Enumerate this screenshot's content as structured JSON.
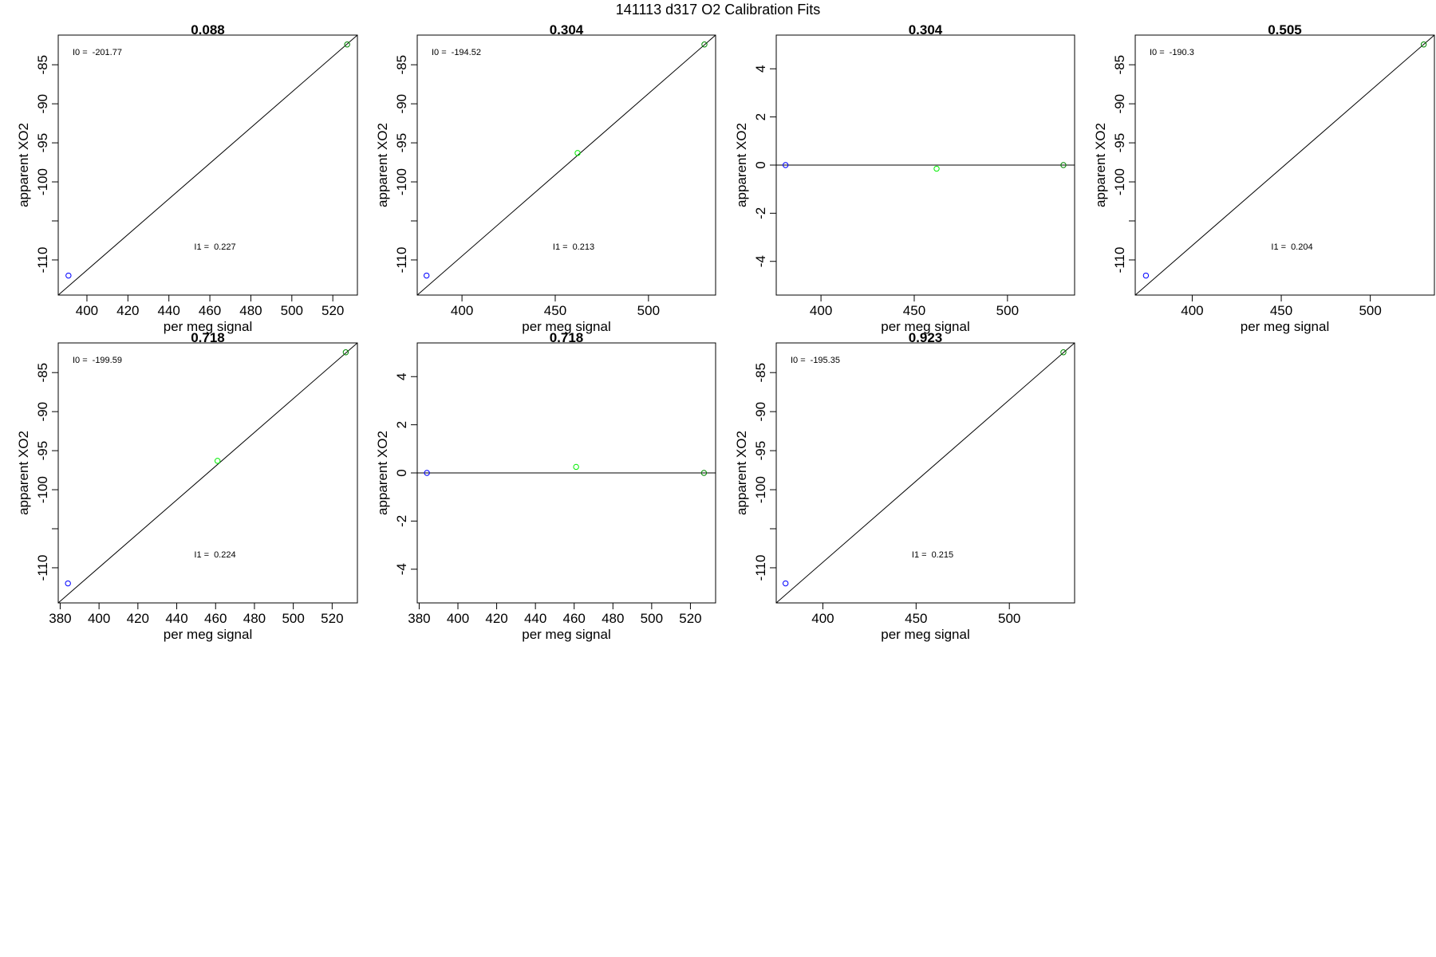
{
  "figure_title": "141113   d317   O2 Calibration Fits",
  "colors": {
    "low": "#0000ff",
    "mid": "#00ee00",
    "high": "#008800",
    "line": "#000000"
  },
  "chart_data": [
    {
      "type": "scatter",
      "title": "0.088",
      "xlabel": "per meg signal",
      "ylabel": "apparent XO2",
      "xlim": [
        386,
        532
      ],
      "ylim": [
        -114.5,
        -81.2
      ],
      "xticks": [
        "400",
        "420",
        "440",
        "460",
        "480",
        "500",
        "520"
      ],
      "yticks": [
        "-110",
        "-100",
        "-95",
        "-90",
        "-85"
      ],
      "ytick_extra": [
        "-105"
      ],
      "points": [
        {
          "x": 391.0,
          "y": -112.0,
          "color": "low"
        },
        {
          "x": 527.0,
          "y": -82.4,
          "color": "high"
        }
      ],
      "fit_line": "diagonal",
      "i0_label": "I0 =",
      "i0_value": "-201.77",
      "i1_label": "I1 =",
      "i1_value": "0.227"
    },
    {
      "type": "scatter",
      "title": "0.304",
      "xlabel": "per meg signal",
      "ylabel": "apparent XO2",
      "xlim": [
        376,
        536
      ],
      "ylim": [
        -114.5,
        -81.2
      ],
      "xticks": [
        "400",
        "450",
        "500"
      ],
      "yticks": [
        "-110",
        "-100",
        "-95",
        "-90",
        "-85"
      ],
      "ytick_extra": [
        "-105"
      ],
      "points": [
        {
          "x": 381.0,
          "y": -112.0,
          "color": "low"
        },
        {
          "x": 462.0,
          "y": -96.3,
          "color": "mid"
        },
        {
          "x": 530.0,
          "y": -82.4,
          "color": "high"
        }
      ],
      "fit_line": "diagonal",
      "i0_label": "I0 =",
      "i0_value": "-194.52",
      "i1_label": "I1 =",
      "i1_value": "0.213"
    },
    {
      "type": "scatter",
      "title": "0.304",
      "xlabel": "per meg signal",
      "ylabel": "apparent XO2",
      "xlim": [
        376,
        536
      ],
      "ylim": [
        -5.4,
        5.4
      ],
      "xticks": [
        "400",
        "450",
        "500"
      ],
      "yticks": [
        "-4",
        "-2",
        "0",
        "2",
        "4"
      ],
      "points": [
        {
          "x": 381.0,
          "y": 0.0,
          "color": "low"
        },
        {
          "x": 462.0,
          "y": -0.15,
          "color": "mid"
        },
        {
          "x": 530.0,
          "y": 0.0,
          "color": "high"
        }
      ],
      "fit_line": "zero"
    },
    {
      "type": "scatter",
      "title": "0.505",
      "xlabel": "per meg signal",
      "ylabel": "apparent XO2",
      "xlim": [
        368,
        536
      ],
      "ylim": [
        -114.5,
        -81.2
      ],
      "xticks": [
        "400",
        "450",
        "500"
      ],
      "yticks": [
        "-110",
        "-100",
        "-95",
        "-90",
        "-85"
      ],
      "ytick_extra": [
        "-105"
      ],
      "points": [
        {
          "x": 374.0,
          "y": -112.0,
          "color": "low"
        },
        {
          "x": 530.0,
          "y": -82.4,
          "color": "high"
        }
      ],
      "fit_line": "diagonal",
      "i0_label": "I0 =",
      "i0_value": "-190.3",
      "i1_label": "I1 =",
      "i1_value": "0.204"
    },
    {
      "type": "scatter",
      "title": "0.718",
      "xlabel": "per meg signal",
      "ylabel": "apparent XO2",
      "xlim": [
        379,
        533
      ],
      "ylim": [
        -114.5,
        -81.2
      ],
      "xticks": [
        "380",
        "400",
        "420",
        "440",
        "460",
        "480",
        "500",
        "520"
      ],
      "yticks": [
        "-110",
        "-100",
        "-95",
        "-90",
        "-85"
      ],
      "ytick_extra": [
        "-105"
      ],
      "points": [
        {
          "x": 384.0,
          "y": -112.0,
          "color": "low"
        },
        {
          "x": 461.0,
          "y": -96.3,
          "color": "mid"
        },
        {
          "x": 527.0,
          "y": -82.4,
          "color": "high"
        }
      ],
      "fit_line": "diagonal",
      "i0_label": "I0 =",
      "i0_value": "-199.59",
      "i1_label": "I1 =",
      "i1_value": "0.224"
    },
    {
      "type": "scatter",
      "title": "0.718",
      "xlabel": "per meg signal",
      "ylabel": "apparent XO2",
      "xlim": [
        379,
        533
      ],
      "ylim": [
        -5.4,
        5.4
      ],
      "xticks": [
        "380",
        "400",
        "420",
        "440",
        "460",
        "480",
        "500",
        "520"
      ],
      "yticks": [
        "-4",
        "-2",
        "0",
        "2",
        "4"
      ],
      "points": [
        {
          "x": 384.0,
          "y": 0.0,
          "color": "low"
        },
        {
          "x": 461.0,
          "y": 0.25,
          "color": "mid"
        },
        {
          "x": 527.0,
          "y": 0.0,
          "color": "high"
        }
      ],
      "fit_line": "zero"
    },
    {
      "type": "scatter",
      "title": "0.923",
      "xlabel": "per meg signal",
      "ylabel": "apparent XO2",
      "xlim": [
        375,
        535
      ],
      "ylim": [
        -114.5,
        -81.2
      ],
      "xticks": [
        "400",
        "450",
        "500"
      ],
      "yticks": [
        "-110",
        "-100",
        "-95",
        "-90",
        "-85"
      ],
      "ytick_extra": [
        "-105"
      ],
      "points": [
        {
          "x": 380.0,
          "y": -112.0,
          "color": "low"
        },
        {
          "x": 529.0,
          "y": -82.4,
          "color": "high"
        }
      ],
      "fit_line": "diagonal",
      "i0_label": "I0 =",
      "i0_value": "-195.35",
      "i1_label": "I1 =",
      "i1_value": "0.215"
    }
  ]
}
